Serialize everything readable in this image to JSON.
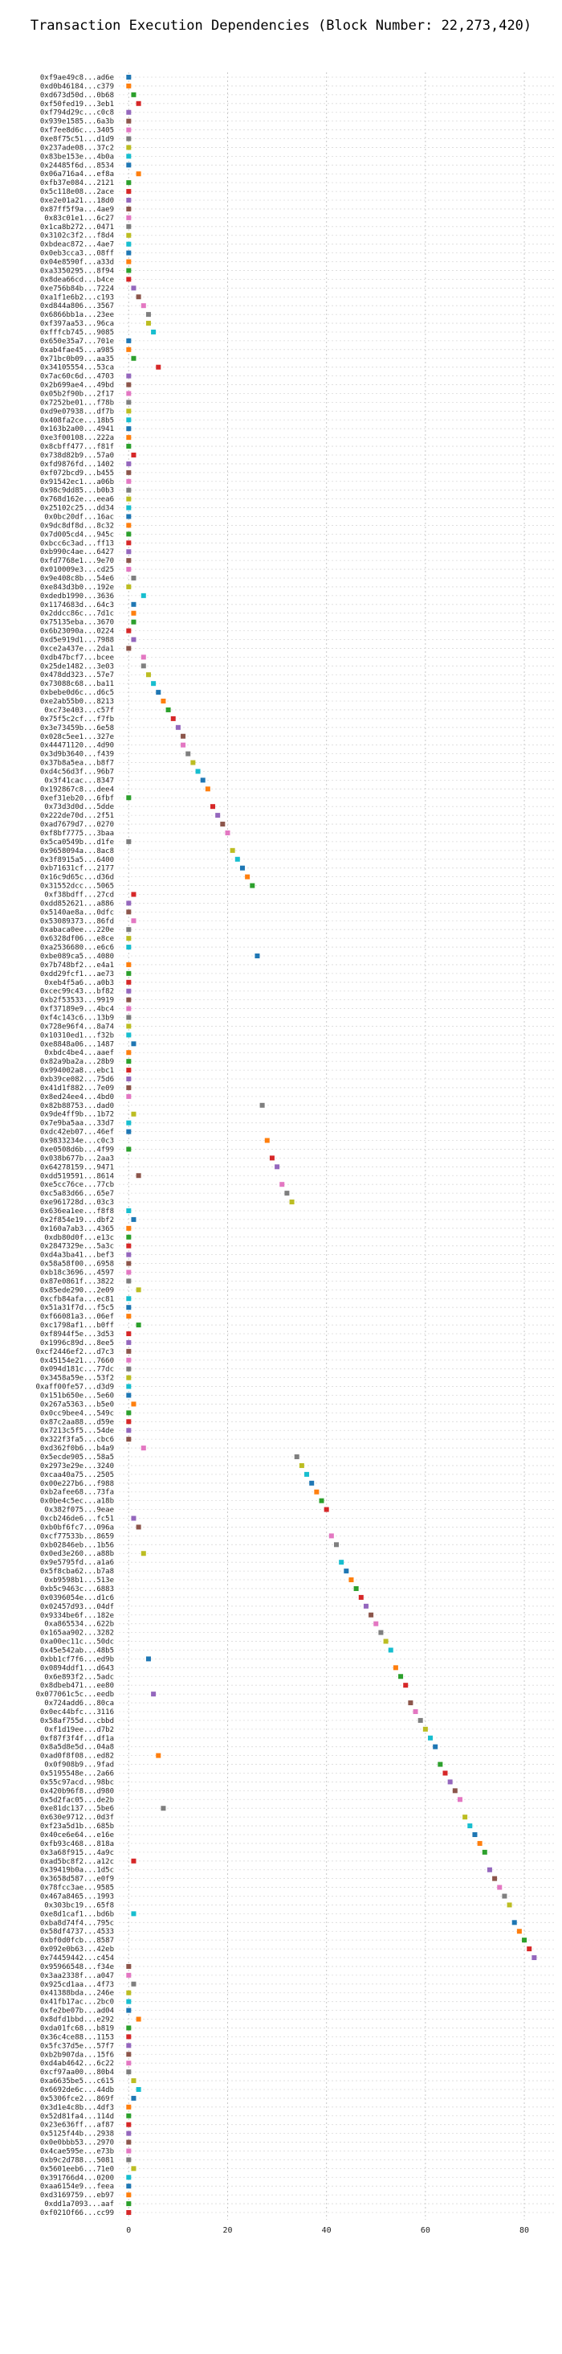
{
  "chart_data": {
    "type": "scatter",
    "title": "Transaction Execution Dependencies (Block Number: 22,273,420)",
    "xlabel": "",
    "ylabel": "",
    "xlim": [
      -2,
      86
    ],
    "xticks": [
      0,
      20,
      40,
      60,
      80
    ],
    "grid": true,
    "legend": "none",
    "colors": [
      "#1f77b4",
      "#ff7f0e",
      "#2ca02c",
      "#d62728",
      "#9467bd",
      "#8c564b",
      "#e377c2",
      "#7f7f7f",
      "#bcbd22",
      "#17becf"
    ],
    "points": [
      {
        "label": "0xf9ae49c8...ad6e",
        "x": 0
      },
      {
        "label": "0xd0b46184...c379",
        "x": 0
      },
      {
        "label": "0xd673d50d...0b68",
        "x": 1
      },
      {
        "label": "0xf50fed19...3eb1",
        "x": 2
      },
      {
        "label": "0xf794d29c...c0c8",
        "x": 0
      },
      {
        "label": "0x939e1585...6a3b",
        "x": 0
      },
      {
        "label": "0xf7ee8d6c...3405",
        "x": 0
      },
      {
        "label": "0xe8f75c51...d1d9",
        "x": 0
      },
      {
        "label": "0x237ade08...37c2",
        "x": 0
      },
      {
        "label": "0x83be153e...4b0a",
        "x": 0
      },
      {
        "label": "0x24485f6d...8534",
        "x": 0
      },
      {
        "label": "0x06a716a4...ef8a",
        "x": 2
      },
      {
        "label": "0xfb37e084...2121",
        "x": 0
      },
      {
        "label": "0x5c118e08...2ace",
        "x": 0
      },
      {
        "label": "0xe2e01a21...18d0",
        "x": 0
      },
      {
        "label": "0x87ff5f9a...4ae9",
        "x": 0
      },
      {
        "label": "0x83c01e1...6c27",
        "x": 0
      },
      {
        "label": "0x1ca8b272...0471",
        "x": 0
      },
      {
        "label": "0x3102c3f2...f8d4",
        "x": 0
      },
      {
        "label": "0xbdeac872...4ae7",
        "x": 0
      },
      {
        "label": "0x0eb3cca3...08ff",
        "x": 0
      },
      {
        "label": "0x04e8590f...a33d",
        "x": 0
      },
      {
        "label": "0xa3350295...8f94",
        "x": 0
      },
      {
        "label": "0x8dea66cd...b4ce",
        "x": 0
      },
      {
        "label": "0xe756b84b...7224",
        "x": 1
      },
      {
        "label": "0xa1f1e6b2...c193",
        "x": 2
      },
      {
        "label": "0xd844a806...3567",
        "x": 3
      },
      {
        "label": "0x6866bb1a...23ee",
        "x": 4
      },
      {
        "label": "0xf397aa53...96ca",
        "x": 4
      },
      {
        "label": "0xfffcb745...9085",
        "x": 5
      },
      {
        "label": "0x650e35a7...701e",
        "x": 0
      },
      {
        "label": "0xab4fae45...a985",
        "x": 0
      },
      {
        "label": "0x71bc0b09...aa35",
        "x": 1
      },
      {
        "label": "0x34105554...53ca",
        "x": 6
      },
      {
        "label": "0x7ac60c6d...4703",
        "x": 0
      },
      {
        "label": "0x2b699ae4...49bd",
        "x": 0
      },
      {
        "label": "0x05b2f90b...2f17",
        "x": 0
      },
      {
        "label": "0x7252be01...f78b",
        "x": 0
      },
      {
        "label": "0xd9e07938...df7b",
        "x": 0
      },
      {
        "label": "0x408fa2ce...18b5",
        "x": 0
      },
      {
        "label": "0x163b2a00...4941",
        "x": 0
      },
      {
        "label": "0xe3f00108...222a",
        "x": 0
      },
      {
        "label": "0x8cbff477...f81f",
        "x": 0
      },
      {
        "label": "0x738d82b9...57a0",
        "x": 1
      },
      {
        "label": "0xfd9876fd...1402",
        "x": 0
      },
      {
        "label": "0xf072bcd9...b455",
        "x": 0
      },
      {
        "label": "0x91542ec1...a06b",
        "x": 0
      },
      {
        "label": "0x98c9dd85...b0b3",
        "x": 0
      },
      {
        "label": "0x768d162e...eea6",
        "x": 0
      },
      {
        "label": "0x25102c25...dd34",
        "x": 0
      },
      {
        "label": "0x0bc20df...16ac",
        "x": 0
      },
      {
        "label": "0x9dc8df8d...8c32",
        "x": 0
      },
      {
        "label": "0x7d005cd4...945c",
        "x": 0
      },
      {
        "label": "0xbcc6c3ad...ff13",
        "x": 0
      },
      {
        "label": "0xb990c4ae...6427",
        "x": 0
      },
      {
        "label": "0xfd7768e1...9e70",
        "x": 0
      },
      {
        "label": "0x010009e3...cd25",
        "x": 0
      },
      {
        "label": "0x9e408c8b...54e6",
        "x": 1
      },
      {
        "label": "0xe843d3b0...192e",
        "x": 0
      },
      {
        "label": "0xdedb1990...3636",
        "x": 3
      },
      {
        "label": "0x1174683d...64c3",
        "x": 1
      },
      {
        "label": "0x2ddcc86c...7d1c",
        "x": 1
      },
      {
        "label": "0x75135eba...3670",
        "x": 1
      },
      {
        "label": "0x6b23090a...0224",
        "x": 0
      },
      {
        "label": "0xd5e919d1...7988",
        "x": 1
      },
      {
        "label": "0xce2a437e...2da1",
        "x": 0
      },
      {
        "label": "0xdb47bcf7...bcee",
        "x": 3
      },
      {
        "label": "0x25de1482...3e03",
        "x": 3
      },
      {
        "label": "0x478dd323...57e7",
        "x": 4
      },
      {
        "label": "0x73088c68...ba11",
        "x": 5
      },
      {
        "label": "0xbebe0d6c...d6c5",
        "x": 6
      },
      {
        "label": "0xe2ab55b0...8213",
        "x": 7
      },
      {
        "label": "0xc73e403...c57f",
        "x": 8
      },
      {
        "label": "0x75f5c2cf...f7fb",
        "x": 9
      },
      {
        "label": "0x3e73459b...6e58",
        "x": 10
      },
      {
        "label": "0x028c5ee1...327e",
        "x": 11
      },
      {
        "label": "0x44471120...4d90",
        "x": 11
      },
      {
        "label": "0x3d9b3640...f439",
        "x": 12
      },
      {
        "label": "0x37b8a5ea...b8f7",
        "x": 13
      },
      {
        "label": "0xd4c56d3f...96b7",
        "x": 14
      },
      {
        "label": "0x3f41cac...8347",
        "x": 15
      },
      {
        "label": "0x192867c8...dee4",
        "x": 16
      },
      {
        "label": "0xef31eb20...6fbf",
        "x": 0
      },
      {
        "label": "0x73d3d0d...5dde",
        "x": 17
      },
      {
        "label": "0x222de70d...2f51",
        "x": 18
      },
      {
        "label": "0xad7679d7...0270",
        "x": 19
      },
      {
        "label": "0xf8bf7775...3baa",
        "x": 20
      },
      {
        "label": "0x5ca0549b...d1fe",
        "x": 0
      },
      {
        "label": "0x9658094a...8ac8",
        "x": 21
      },
      {
        "label": "0x3f8915a5...6400",
        "x": 22
      },
      {
        "label": "0xb71631cf...2177",
        "x": 23
      },
      {
        "label": "0x16c9d65c...d36d",
        "x": 24
      },
      {
        "label": "0x31552dcc...5065",
        "x": 25
      },
      {
        "label": "0xf38bdff...27cd",
        "x": 1
      },
      {
        "label": "0xdd852621...a886",
        "x": 0
      },
      {
        "label": "0x5140ae8a...0dfc",
        "x": 0
      },
      {
        "label": "0x53089373...86fd",
        "x": 1
      },
      {
        "label": "0xabaca0ee...220e",
        "x": 0
      },
      {
        "label": "0x6328df06...e8ce",
        "x": 0
      },
      {
        "label": "0xa2536680...e6c6",
        "x": 0
      },
      {
        "label": "0xbe089ca5...4080",
        "x": 26
      },
      {
        "label": "0x7b748bf2...e4a1",
        "x": 0
      },
      {
        "label": "0xdd29fcf1...ae73",
        "x": 0
      },
      {
        "label": "0xeb4f5a6...a0b3",
        "x": 0
      },
      {
        "label": "0xcec99c43...bf82",
        "x": 0
      },
      {
        "label": "0xb2f53533...9919",
        "x": 0
      },
      {
        "label": "0xf37189e9...4bc4",
        "x": 0
      },
      {
        "label": "0xf4c143c6...13b9",
        "x": 0
      },
      {
        "label": "0x728e96f4...8a74",
        "x": 0
      },
      {
        "label": "0x10310ed1...f32b",
        "x": 0
      },
      {
        "label": "0xe8848a06...1487",
        "x": 1
      },
      {
        "label": "0xbdc4be4...aaef",
        "x": 0
      },
      {
        "label": "0x82a9ba2a...28b9",
        "x": 0
      },
      {
        "label": "0x994002a8...ebc1",
        "x": 0
      },
      {
        "label": "0xb39ce082...75d6",
        "x": 0
      },
      {
        "label": "0x41d1f882...7e09",
        "x": 0
      },
      {
        "label": "0x8ed24ee4...4bd0",
        "x": 0
      },
      {
        "label": "0x82b88753...dad0",
        "x": 27
      },
      {
        "label": "0x9de4ff9b...1b72",
        "x": 1
      },
      {
        "label": "0x7e9ba5aa...33d7",
        "x": 0
      },
      {
        "label": "0xdc42eb07...46ef",
        "x": 0
      },
      {
        "label": "0x9833234e...c0c3",
        "x": 28
      },
      {
        "label": "0xe0508d6b...4f99",
        "x": 0
      },
      {
        "label": "0x038b677b...2aa3",
        "x": 29
      },
      {
        "label": "0x64278159...9471",
        "x": 30
      },
      {
        "label": "0xdd519591...8614",
        "x": 2
      },
      {
        "label": "0xe5cc76ce...77cb",
        "x": 31
      },
      {
        "label": "0xc5a83d66...65e7",
        "x": 32
      },
      {
        "label": "0xe961728d...03c3",
        "x": 33
      },
      {
        "label": "0x636ea1ee...f8f8",
        "x": 0
      },
      {
        "label": "0x2f854e19...dbf2",
        "x": 1
      },
      {
        "label": "0x160a7ab3...4365",
        "x": 0
      },
      {
        "label": "0xdb80d0f...e13c",
        "x": 0
      },
      {
        "label": "0x2847329e...5a3c",
        "x": 0
      },
      {
        "label": "0xd4a3ba41...bef3",
        "x": 0
      },
      {
        "label": "0x58a58f00...6958",
        "x": 0
      },
      {
        "label": "0xb18c3696...4597",
        "x": 0
      },
      {
        "label": "0x87e0861f...3822",
        "x": 0
      },
      {
        "label": "0x85ede290...2e09",
        "x": 2
      },
      {
        "label": "0xcfb84afa...ec81",
        "x": 0
      },
      {
        "label": "0x51a31f7d...f5c5",
        "x": 0
      },
      {
        "label": "0xf66081a3...06ef",
        "x": 0
      },
      {
        "label": "0xc1798af1...b0ff",
        "x": 2
      },
      {
        "label": "0xf8944f5e...3d53",
        "x": 0
      },
      {
        "label": "0x1996c89d...8ee5",
        "x": 0
      },
      {
        "label": "0xcf2446ef2...d7c3",
        "x": 0
      },
      {
        "label": "0x45154e21...7660",
        "x": 0
      },
      {
        "label": "0x094d181c...77dc",
        "x": 0
      },
      {
        "label": "0x3458a59e...53f2",
        "x": 0
      },
      {
        "label": "0xaff00fe57...d3d9",
        "x": 0
      },
      {
        "label": "0x151b650e...5e60",
        "x": 0
      },
      {
        "label": "0x267a5363...b5e0",
        "x": 1
      },
      {
        "label": "0x0cc9bee4...549c",
        "x": 0
      },
      {
        "label": "0x87c2aa88...d59e",
        "x": 0
      },
      {
        "label": "0x7213c5f5...54de",
        "x": 0
      },
      {
        "label": "0x322f3fa5...cbc6",
        "x": 0
      },
      {
        "label": "0xd362f0b6...b4a9",
        "x": 3
      },
      {
        "label": "0x5ecde905...58a5",
        "x": 34
      },
      {
        "label": "0x2973e29e...3240",
        "x": 35
      },
      {
        "label": "0xcaa40a75...2505",
        "x": 36
      },
      {
        "label": "0x00e227b6...f988",
        "x": 37
      },
      {
        "label": "0xb2afee68...73fa",
        "x": 38
      },
      {
        "label": "0x0be4c5ec...a18b",
        "x": 39
      },
      {
        "label": "0x382f075...9eae",
        "x": 40
      },
      {
        "label": "0xcb246de6...fc51",
        "x": 1
      },
      {
        "label": "0xb0bf6fc7...096a",
        "x": 2
      },
      {
        "label": "0xcf77533b...8659",
        "x": 41
      },
      {
        "label": "0xb02846eb...1b56",
        "x": 42
      },
      {
        "label": "0x0ed3e260...a88b",
        "x": 3
      },
      {
        "label": "0x9e5795fd...a1a6",
        "x": 43
      },
      {
        "label": "0x5f8cba62...b7a8",
        "x": 44
      },
      {
        "label": "0xb9598b1...513e",
        "x": 45
      },
      {
        "label": "0xb5c9463c...6883",
        "x": 46
      },
      {
        "label": "0x0396054e...d1c6",
        "x": 47
      },
      {
        "label": "0x02457d93...04df",
        "x": 48
      },
      {
        "label": "0x9334be6f...182e",
        "x": 49
      },
      {
        "label": "0xa865534...622b",
        "x": 50
      },
      {
        "label": "0x165aa902...3282",
        "x": 51
      },
      {
        "label": "0xa00ec11c...50dc",
        "x": 52
      },
      {
        "label": "0x45e542ab...48b5",
        "x": 53
      },
      {
        "label": "0xbb1cf7f6...ed9b",
        "x": 4
      },
      {
        "label": "0x0894ddf1...d643",
        "x": 54
      },
      {
        "label": "0x6e893f2...5adc",
        "x": 55
      },
      {
        "label": "0x8dbeb471...ee80",
        "x": 56
      },
      {
        "label": "0x077061c5c...eedb",
        "x": 5
      },
      {
        "label": "0x724add6...80ca",
        "x": 57
      },
      {
        "label": "0x0ec44bfc...3116",
        "x": 58
      },
      {
        "label": "0x58af755d...cbbd",
        "x": 59
      },
      {
        "label": "0xf1d19ee...d7b2",
        "x": 60
      },
      {
        "label": "0xf87f3f4f...df1a",
        "x": 61
      },
      {
        "label": "0x8a5d8e5d...04a8",
        "x": 62
      },
      {
        "label": "0xad0f8f08...ed82",
        "x": 6
      },
      {
        "label": "0x0f908b9...9fad",
        "x": 63
      },
      {
        "label": "0x5195548e...2a66",
        "x": 64
      },
      {
        "label": "0x55c97acd...98bc",
        "x": 65
      },
      {
        "label": "0x420b96f8...d980",
        "x": 66
      },
      {
        "label": "0x5d2fac05...de2b",
        "x": 67
      },
      {
        "label": "0xe81dc137...5be6",
        "x": 7
      },
      {
        "label": "0x630e9712...0d3f",
        "x": 68
      },
      {
        "label": "0xf23a5d1b...685b",
        "x": 69
      },
      {
        "label": "0x40ce6e64...e16e",
        "x": 70
      },
      {
        "label": "0xfb93c468...818a",
        "x": 71
      },
      {
        "label": "0x3a68f915...4a9c",
        "x": 72
      },
      {
        "label": "0xad5bc8f2...a12c",
        "x": 1
      },
      {
        "label": "0x39419b0a...1d5c",
        "x": 73
      },
      {
        "label": "0x3658d587...e0f9",
        "x": 74
      },
      {
        "label": "0x78fcc3ae...9585",
        "x": 75
      },
      {
        "label": "0x467a8465...1993",
        "x": 76
      },
      {
        "label": "0x303bc19...65f8",
        "x": 77
      },
      {
        "label": "0xe8d1caf1...bd6b",
        "x": 1
      },
      {
        "label": "0xba8d74f4...795c",
        "x": 78
      },
      {
        "label": "0x58df4737...4533",
        "x": 79
      },
      {
        "label": "0xbf0d0fcb...8587",
        "x": 80
      },
      {
        "label": "0x092e0b63...42eb",
        "x": 81
      },
      {
        "label": "0x74459442...c454",
        "x": 82
      },
      {
        "label": "0x95966548...f34e",
        "x": 0
      },
      {
        "label": "0x3aa2338f...a047",
        "x": 0
      },
      {
        "label": "0x925cd1aa...4f73",
        "x": 1
      },
      {
        "label": "0x41388bda...246e",
        "x": 0
      },
      {
        "label": "0x41fb17ac...2bc0",
        "x": 0
      },
      {
        "label": "0xfe2be07b...ad04",
        "x": 0
      },
      {
        "label": "0x8dfd1bbd...e292",
        "x": 2
      },
      {
        "label": "0xda01fc68...b819",
        "x": 0
      },
      {
        "label": "0x36c4ce88...1153",
        "x": 0
      },
      {
        "label": "0x5fc37d5e...57f7",
        "x": 0
      },
      {
        "label": "0xb2b907da...15f6",
        "x": 0
      },
      {
        "label": "0xd4ab4642...6c22",
        "x": 0
      },
      {
        "label": "0xcf97aa00...80b4",
        "x": 0
      },
      {
        "label": "0xa6635be5...c615",
        "x": 1
      },
      {
        "label": "0x6692de6c...44db",
        "x": 2
      },
      {
        "label": "0x5306fce2...869f",
        "x": 1
      },
      {
        "label": "0x3d1e4c8b...4df3",
        "x": 0
      },
      {
        "label": "0x52d81fa4...114d",
        "x": 0
      },
      {
        "label": "0x23e636ff...af87",
        "x": 0
      },
      {
        "label": "0x5125f44b...2938",
        "x": 0
      },
      {
        "label": "0x0e0bbb53...2970",
        "x": 0
      },
      {
        "label": "0x4cae595e...e73b",
        "x": 0
      },
      {
        "label": "0xb9c2d788...5081",
        "x": 0
      },
      {
        "label": "0x5601eeb6...71e0",
        "x": 1
      },
      {
        "label": "0x391766d4...0200",
        "x": 0
      },
      {
        "label": "0xaa6154e9...feea",
        "x": 0
      },
      {
        "label": "0xd3169759...eb97",
        "x": 0
      },
      {
        "label": "0xdd1a7093...aaf",
        "x": 0
      },
      {
        "label": "0xf021Of66...cc99",
        "x": 0
      }
    ]
  }
}
